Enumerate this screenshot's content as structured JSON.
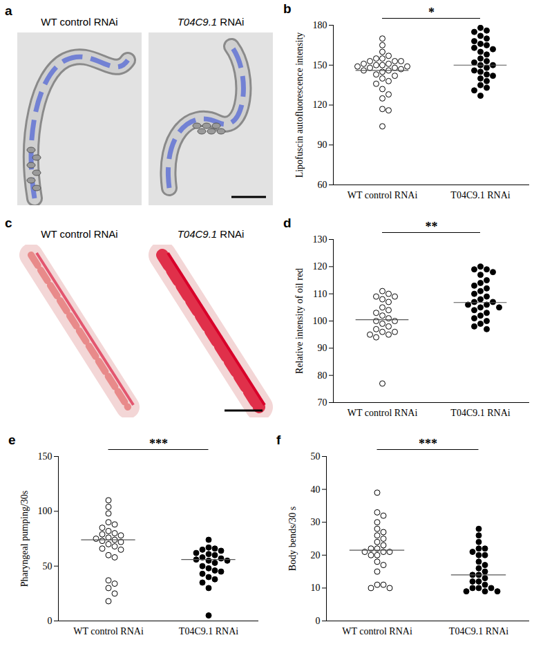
{
  "image_panels": [
    {
      "panel": "a",
      "labels": [
        "WT control RNAi",
        "T04C9.1 RNAi"
      ]
    },
    {
      "panel": "c",
      "labels": [
        "WT control RNAi",
        "T04C9.1 RNAi"
      ]
    }
  ],
  "chart_data": [
    {
      "panel": "b",
      "type": "scatter",
      "ylabel": "Lipofuscin autofluorescence intensity",
      "ylim": [
        60,
        180
      ],
      "yticks": [
        60,
        90,
        120,
        150,
        180
      ],
      "significance": "*",
      "series": [
        {
          "name": "WT control RNAi",
          "marker": "open",
          "color": "#000000",
          "line_value": 146,
          "values": [
            170,
            165,
            160,
            157,
            155,
            155,
            153,
            153,
            153,
            151,
            151,
            150,
            150,
            149,
            149,
            148,
            148,
            147,
            146,
            146,
            145,
            143,
            142,
            140,
            138,
            136,
            132,
            128,
            125,
            117,
            116,
            104
          ]
        },
        {
          "name": "T04C9.1 RNAi",
          "marker": "filled",
          "color": "#000000",
          "line_value": 150,
          "values": [
            178,
            176,
            175,
            172,
            170,
            168,
            166,
            165,
            163,
            162,
            160,
            158,
            155,
            153,
            152,
            150,
            150,
            148,
            146,
            145,
            143,
            142,
            140,
            138,
            135,
            133,
            131,
            127
          ]
        }
      ]
    },
    {
      "panel": "d",
      "type": "scatter",
      "ylabel": "Relative intensity of oil red",
      "ylim": [
        70,
        130
      ],
      "yticks": [
        70,
        80,
        90,
        100,
        110,
        120,
        130
      ],
      "significance": "**",
      "series": [
        {
          "name": "WT control RNAi",
          "marker": "open",
          "color": "#000000",
          "line_value": 100.5,
          "values": [
            111,
            110,
            109,
            109,
            108,
            107,
            105,
            104,
            103,
            102,
            101,
            100,
            100,
            99,
            98,
            97,
            96,
            96,
            95,
            95,
            94,
            77
          ]
        },
        {
          "name": "T04C9.1 RNAi",
          "marker": "filled",
          "color": "#000000",
          "line_value": 106.8,
          "values": [
            120,
            119,
            119,
            118,
            117,
            115,
            114,
            113,
            112,
            111,
            110,
            109,
            108,
            107,
            107,
            106,
            106,
            105,
            105,
            104,
            103,
            102,
            101,
            100,
            99,
            98,
            97
          ]
        }
      ]
    },
    {
      "panel": "e",
      "type": "scatter",
      "ylabel": "Pharyngeal pumping/30s",
      "ylim": [
        0,
        150
      ],
      "yticks": [
        0,
        50,
        100,
        150
      ],
      "significance": "***",
      "series": [
        {
          "name": "WT control RNAi",
          "marker": "open",
          "color": "#000000",
          "line_value": 74,
          "values": [
            110,
            104,
            98,
            90,
            88,
            85,
            82,
            80,
            79,
            78,
            76,
            75,
            74,
            73,
            72,
            70,
            68,
            66,
            65,
            60,
            58,
            37,
            34,
            30,
            25,
            18
          ]
        },
        {
          "name": "T04C9.1 RNAi",
          "marker": "filled",
          "color": "#000000",
          "line_value": 56,
          "values": [
            74,
            67,
            66,
            65,
            64,
            62,
            61,
            60,
            58,
            57,
            56,
            55,
            55,
            53,
            50,
            48,
            46,
            45,
            43,
            40,
            38,
            35,
            30,
            5
          ]
        }
      ]
    },
    {
      "panel": "f",
      "type": "scatter",
      "ylabel": "Body bends/30 s",
      "ylim": [
        0,
        50
      ],
      "yticks": [
        0,
        10,
        20,
        30,
        40,
        50
      ],
      "significance": "***",
      "series": [
        {
          "name": "WT control RNAi",
          "marker": "open",
          "color": "#000000",
          "line_value": 21.5,
          "values": [
            39,
            33,
            32,
            30,
            28,
            27,
            26,
            25,
            24,
            23,
            22,
            22,
            21,
            21,
            21,
            20,
            20,
            18,
            17,
            15,
            11,
            11,
            10,
            10
          ]
        },
        {
          "name": "T04C9.1 RNAi",
          "marker": "filled",
          "color": "#000000",
          "line_value": 14,
          "values": [
            28,
            26,
            24,
            22,
            22,
            21,
            20,
            20,
            18,
            17,
            16,
            15,
            14,
            14,
            13,
            12,
            12,
            11,
            10,
            10,
            10,
            9,
            9,
            9
          ]
        }
      ]
    }
  ]
}
